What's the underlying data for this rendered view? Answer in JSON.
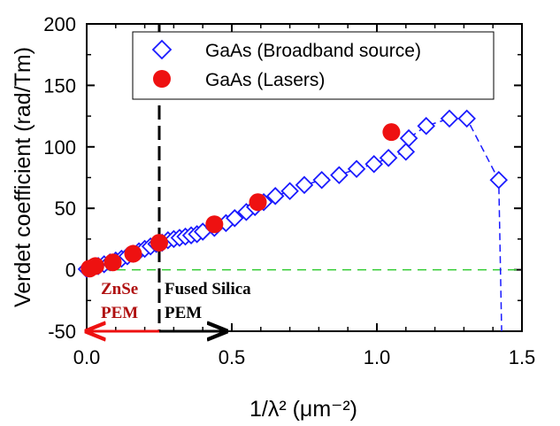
{
  "chart_data": {
    "type": "scatter",
    "xlabel": "1/λ² (μm⁻²)",
    "ylabel": "Verdet coefficient (rad/Tm)",
    "xlim": [
      0.0,
      1.5
    ],
    "ylim": [
      -50,
      200
    ],
    "x_ticks": [
      "0.0",
      "0.5",
      "1.0",
      "1.5"
    ],
    "y_ticks": [
      "-50",
      "0",
      "50",
      "100",
      "150",
      "200"
    ],
    "x_tick_values": [
      0.0,
      0.5,
      1.0,
      1.5
    ],
    "y_tick_values": [
      -50,
      0,
      50,
      100,
      150,
      200
    ],
    "legend_position": "top",
    "series": [
      {
        "name": "GaAs (Broadband source)",
        "marker": "open-diamond",
        "color": "#1a1aff",
        "line": "dashed",
        "x": [
          0.0,
          0.02,
          0.04,
          0.06,
          0.08,
          0.1,
          0.12,
          0.14,
          0.16,
          0.18,
          0.2,
          0.22,
          0.24,
          0.26,
          0.28,
          0.3,
          0.32,
          0.34,
          0.36,
          0.38,
          0.4,
          0.44,
          0.48,
          0.51,
          0.55,
          0.58,
          0.61,
          0.65,
          0.7,
          0.75,
          0.81,
          0.87,
          0.93,
          0.99,
          1.04,
          1.1,
          1.11,
          1.17,
          1.25,
          1.31,
          1.42,
          1.43
        ],
        "y": [
          0.5,
          2,
          3,
          4.5,
          6,
          7.5,
          9,
          11,
          13,
          15,
          17,
          19,
          21,
          22,
          24,
          25,
          26,
          27,
          28,
          29,
          31,
          34,
          38,
          42,
          47,
          51,
          55,
          60,
          64,
          69,
          73,
          77,
          82,
          86,
          91,
          96,
          107,
          117,
          123,
          123,
          73,
          -50
        ]
      },
      {
        "name": "GaAs (Lasers)",
        "marker": "filled-circle",
        "color": "#ee1111",
        "x": [
          0.01,
          0.03,
          0.09,
          0.16,
          0.25,
          0.44,
          0.59,
          1.05
        ],
        "y": [
          1,
          3,
          6,
          13,
          22,
          37,
          55,
          112
        ]
      }
    ],
    "reference_lines": [
      {
        "type": "horizontal",
        "y": 0,
        "color": "#33cc33",
        "style": "dashed"
      },
      {
        "type": "vertical",
        "x": 0.25,
        "color": "#000000",
        "style": "dashed"
      }
    ],
    "annotations": [
      {
        "text": "ZnSe",
        "color": "#b01010"
      },
      {
        "text": "PEM",
        "color": "#b01010"
      },
      {
        "text": "Fused Silica",
        "color": "#000000"
      },
      {
        "text": "PEM",
        "color": "#000000"
      }
    ],
    "arrows": [
      {
        "from_x": 0.25,
        "to_x": 0.0,
        "y": -50,
        "color": "#ee1111"
      },
      {
        "from_x": 0.25,
        "to_x": 0.48,
        "y": -50,
        "color": "#000000"
      }
    ]
  }
}
